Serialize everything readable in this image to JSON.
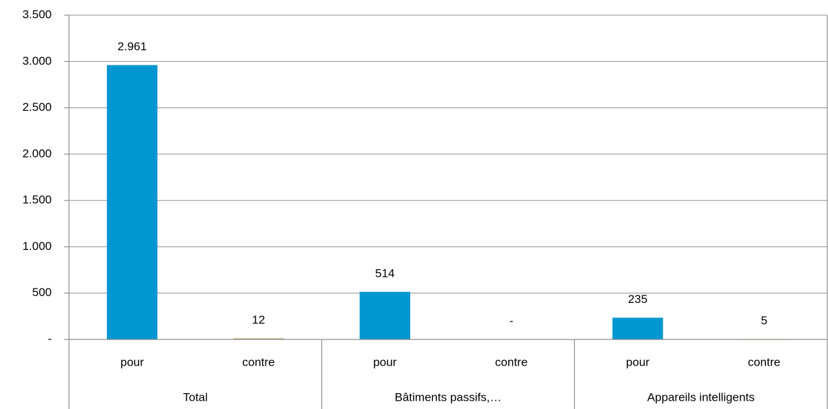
{
  "chart_data": {
    "type": "bar",
    "groups": [
      {
        "name": "Total",
        "categories": [
          "pour",
          "contre"
        ],
        "values": [
          2961,
          12
        ],
        "value_labels": [
          "2.961",
          "12"
        ]
      },
      {
        "name": "Bâtiments passifs,…",
        "categories": [
          "pour",
          "contre"
        ],
        "values": [
          514,
          0
        ],
        "value_labels": [
          "514",
          "-"
        ]
      },
      {
        "name": "Appareils intelligents",
        "categories": [
          "pour",
          "contre"
        ],
        "values": [
          235,
          5
        ],
        "value_labels": [
          "235",
          "5"
        ]
      }
    ],
    "colors": [
      "#0096d1",
      "#c8a46e"
    ],
    "ylim": [
      0,
      3500
    ],
    "yticks": [
      {
        "value": 0,
        "label": "-"
      },
      500,
      {
        "value": 1000,
        "label": "1.000"
      },
      {
        "value": 1500,
        "label": "1.500"
      },
      {
        "value": 2000,
        "label": "2.000"
      },
      {
        "value": 2500,
        "label": "2.500"
      },
      {
        "value": 3000,
        "label": "3.000"
      },
      {
        "value": 3500,
        "label": "3.500"
      }
    ],
    "grid": true
  }
}
